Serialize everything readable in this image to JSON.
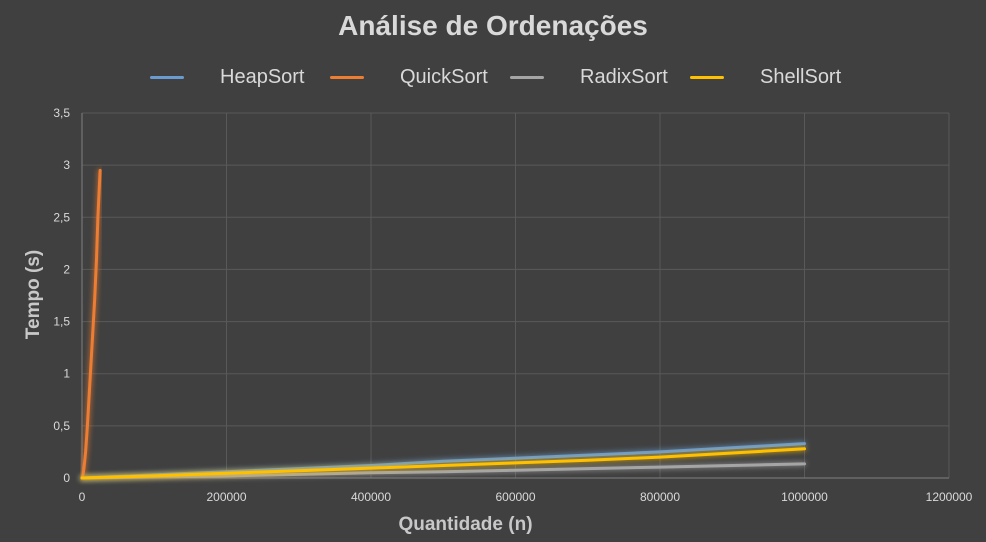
{
  "chart_data": {
    "type": "line",
    "title": "Análise de Ordenações",
    "xlabel": "Quantidade (n)",
    "ylabel": "Tempo (s)",
    "xlim": [
      0,
      1200000
    ],
    "ylim": [
      0,
      3.5
    ],
    "x_ticks": [
      "0",
      "200000",
      "400000",
      "600000",
      "800000",
      "1000000",
      "1200000"
    ],
    "y_ticks": [
      "0",
      "0,5",
      "1",
      "1,5",
      "2",
      "2,5",
      "3",
      "3,5"
    ],
    "grid": true,
    "legend_position": "top",
    "series": [
      {
        "name": "HeapSort",
        "color": "#6a9bd0",
        "x": [
          0,
          100000,
          200000,
          300000,
          400000,
          500000,
          600000,
          700000,
          800000,
          900000,
          1000000
        ],
        "y": [
          0,
          0.03,
          0.06,
          0.09,
          0.12,
          0.16,
          0.19,
          0.22,
          0.25,
          0.29,
          0.33
        ]
      },
      {
        "name": "QuickSort",
        "color": "#ed7d31",
        "x": [
          0,
          1000,
          2500,
          5000,
          7500,
          10000,
          12500,
          15000,
          17500,
          20000,
          22000,
          25000
        ],
        "y": [
          0,
          0.02,
          0.08,
          0.25,
          0.5,
          0.8,
          1.1,
          1.4,
          1.7,
          2.1,
          2.5,
          2.95
        ]
      },
      {
        "name": "RadixSort",
        "color": "#a5a5a5",
        "x": [
          0,
          100000,
          200000,
          300000,
          400000,
          500000,
          600000,
          700000,
          800000,
          900000,
          1000000
        ],
        "y": [
          0,
          0.01,
          0.02,
          0.035,
          0.05,
          0.06,
          0.075,
          0.09,
          0.105,
          0.12,
          0.135
        ]
      },
      {
        "name": "ShellSort",
        "color": "#ffc000",
        "x": [
          0,
          100000,
          200000,
          300000,
          400000,
          500000,
          600000,
          700000,
          800000,
          900000,
          1000000
        ],
        "y": [
          0,
          0.02,
          0.045,
          0.07,
          0.095,
          0.12,
          0.145,
          0.17,
          0.2,
          0.24,
          0.28
        ]
      }
    ]
  }
}
